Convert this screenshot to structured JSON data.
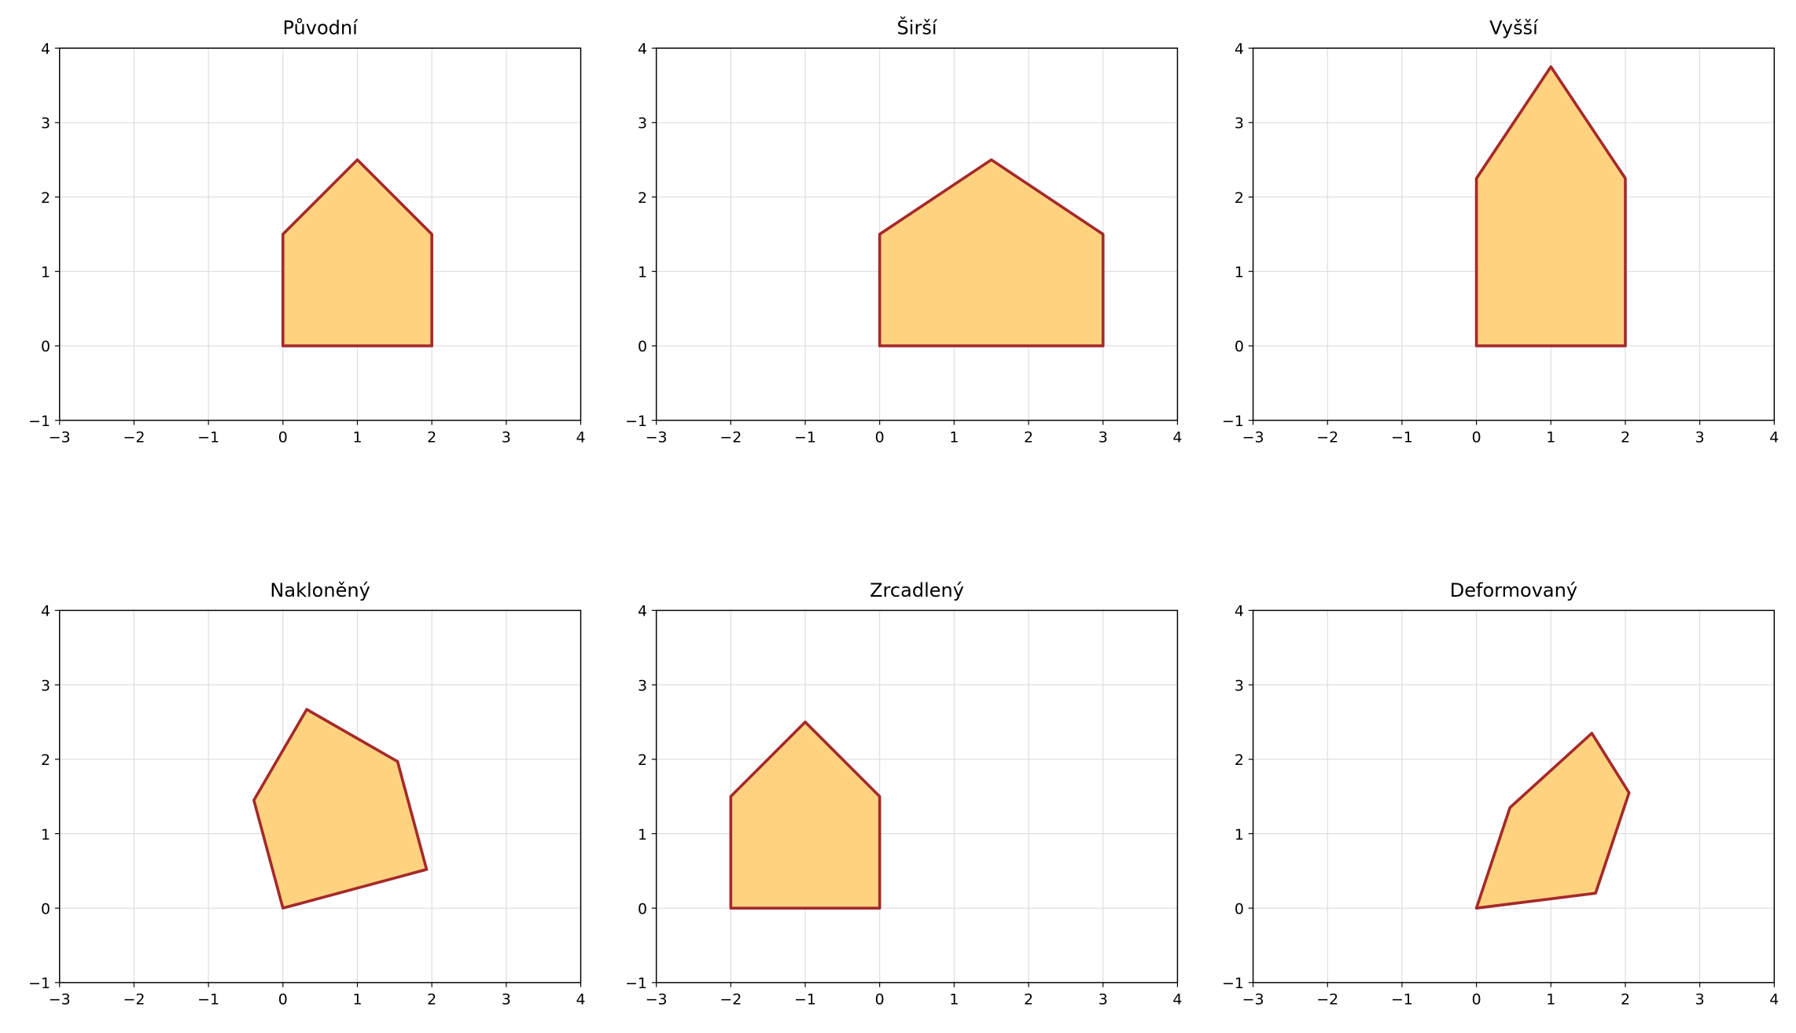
{
  "chart_data": [
    {
      "type": "polygon",
      "title": "Původní",
      "x": [
        0,
        2,
        2,
        1,
        0
      ],
      "y": [
        0,
        0,
        1.5,
        2.5,
        1.5
      ],
      "color": "#ffd280",
      "edgecolor": "#a52a2a",
      "grid": true,
      "xlim": [
        -3,
        4
      ],
      "ylim": [
        -1,
        4
      ],
      "xticks": [
        {
          "value": -3,
          "label": "−3"
        },
        {
          "value": -2,
          "label": "−2"
        },
        {
          "value": -1,
          "label": "−1"
        },
        0,
        1,
        2,
        3,
        4
      ],
      "yticks": [
        {
          "value": -1,
          "label": "−1"
        },
        0,
        1,
        2,
        3,
        4
      ]
    },
    {
      "type": "polygon",
      "title": "Širší",
      "x": [
        0,
        3,
        3,
        1.5,
        0
      ],
      "y": [
        0,
        0,
        1.5,
        2.5,
        1.5
      ],
      "color": "#ffd280",
      "edgecolor": "#a52a2a",
      "grid": true,
      "xlim": [
        -3,
        4
      ],
      "ylim": [
        -1,
        4
      ],
      "xticks": [
        {
          "value": -3,
          "label": "−3"
        },
        {
          "value": -2,
          "label": "−2"
        },
        {
          "value": -1,
          "label": "−1"
        },
        0,
        1,
        2,
        3,
        4
      ],
      "yticks": [
        {
          "value": -1,
          "label": "−1"
        },
        0,
        1,
        2,
        3,
        4
      ]
    },
    {
      "type": "polygon",
      "title": "Vyšší",
      "x": [
        0,
        2,
        2,
        1,
        0
      ],
      "y": [
        0,
        0,
        2.25,
        3.75,
        2.25
      ],
      "color": "#ffd280",
      "edgecolor": "#a52a2a",
      "grid": true,
      "xlim": [
        -3,
        4
      ],
      "ylim": [
        -1,
        4
      ],
      "xticks": [
        {
          "value": -3,
          "label": "−3"
        },
        {
          "value": -2,
          "label": "−2"
        },
        {
          "value": -1,
          "label": "−1"
        },
        0,
        1,
        2,
        3,
        4
      ],
      "yticks": [
        {
          "value": -1,
          "label": "−1"
        },
        0,
        1,
        2,
        3,
        4
      ]
    },
    {
      "type": "polygon",
      "title": "Nakloněný",
      "x": [
        0,
        1.93,
        1.54,
        0.32,
        -0.39
      ],
      "y": [
        0,
        0.52,
        1.97,
        2.67,
        1.45
      ],
      "color": "#ffd280",
      "edgecolor": "#a52a2a",
      "grid": true,
      "xlim": [
        -3,
        4
      ],
      "ylim": [
        -1,
        4
      ],
      "xticks": [
        {
          "value": -3,
          "label": "−3"
        },
        {
          "value": -2,
          "label": "−2"
        },
        {
          "value": -1,
          "label": "−1"
        },
        0,
        1,
        2,
        3,
        4
      ],
      "yticks": [
        {
          "value": -1,
          "label": "−1"
        },
        0,
        1,
        2,
        3,
        4
      ]
    },
    {
      "type": "polygon",
      "title": "Zrcadlený",
      "x": [
        0,
        -2,
        -2,
        -1,
        0
      ],
      "y": [
        0,
        0,
        1.5,
        2.5,
        1.5
      ],
      "color": "#ffd280",
      "edgecolor": "#a52a2a",
      "grid": true,
      "xlim": [
        -3,
        4
      ],
      "ylim": [
        -1,
        4
      ],
      "xticks": [
        {
          "value": -3,
          "label": "−3"
        },
        {
          "value": -2,
          "label": "−2"
        },
        {
          "value": -1,
          "label": "−1"
        },
        0,
        1,
        2,
        3,
        4
      ],
      "yticks": [
        {
          "value": -1,
          "label": "−1"
        },
        0,
        1,
        2,
        3,
        4
      ]
    },
    {
      "type": "polygon",
      "title": "Deformovaný",
      "x": [
        0,
        1.6,
        2.05,
        1.55,
        0.45
      ],
      "y": [
        0,
        0.2,
        1.55,
        2.35,
        1.35
      ],
      "color": "#ffd280",
      "edgecolor": "#a52a2a",
      "grid": true,
      "xlim": [
        -3,
        4
      ],
      "ylim": [
        -1,
        4
      ],
      "xticks": [
        {
          "value": -3,
          "label": "−3"
        },
        {
          "value": -2,
          "label": "−2"
        },
        {
          "value": -1,
          "label": "−1"
        },
        0,
        1,
        2,
        3,
        4
      ],
      "yticks": [
        {
          "value": -1,
          "label": "−1"
        },
        0,
        1,
        2,
        3,
        4
      ]
    }
  ]
}
